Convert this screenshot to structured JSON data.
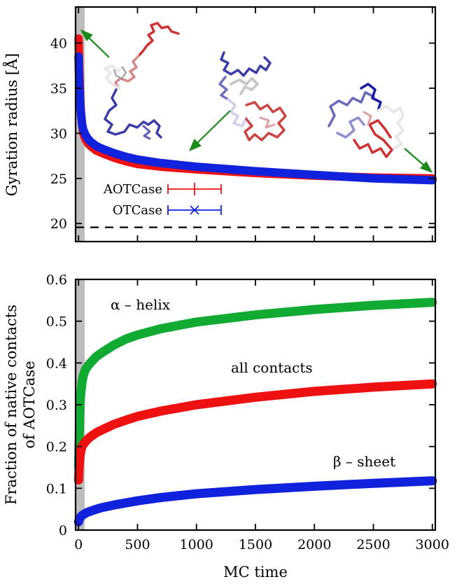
{
  "chart_data": [
    {
      "type": "line",
      "ylabel": "Gyration radius [Å]",
      "xlim": [
        -25,
        3025
      ],
      "ylim": [
        18,
        44
      ],
      "xticks": [
        0,
        500,
        1000,
        1500,
        2000,
        2500,
        3000
      ],
      "yticks": [
        20,
        25,
        30,
        35,
        40
      ],
      "shaded_region": [
        0,
        60
      ],
      "reference_line": {
        "y": 20,
        "style": "dashed"
      },
      "legend": [
        "AOTCase",
        "OTCase"
      ],
      "series": [
        {
          "name": "AOTCase",
          "color": "#ee1111",
          "marker": "|",
          "x": [
            0,
            5,
            10,
            15,
            20,
            30,
            40,
            60,
            80,
            100,
            150,
            200,
            300,
            400,
            500,
            700,
            1000,
            1500,
            2000,
            2500,
            3000
          ],
          "y": [
            40.5,
            37.5,
            35.5,
            33.8,
            32.5,
            31.0,
            30.0,
            29.3,
            28.9,
            28.6,
            28.1,
            27.8,
            27.3,
            26.9,
            26.6,
            26.3,
            26.0,
            25.6,
            25.3,
            25.1,
            25.0
          ]
        },
        {
          "name": "OTCase",
          "color": "#1122dd",
          "marker": "x",
          "x": [
            0,
            5,
            10,
            15,
            20,
            30,
            40,
            60,
            80,
            100,
            150,
            200,
            300,
            400,
            500,
            700,
            1000,
            1500,
            2000,
            2500,
            3000
          ],
          "y": [
            38.5,
            36.0,
            34.5,
            33.2,
            32.2,
            31.0,
            30.4,
            29.8,
            29.4,
            29.1,
            28.6,
            28.3,
            27.8,
            27.4,
            27.1,
            26.7,
            26.3,
            25.8,
            25.4,
            25.0,
            24.8
          ]
        }
      ]
    },
    {
      "type": "line",
      "xlabel": "MC time",
      "ylabel_line1": "Fraction of native contacts",
      "ylabel_line2": "of AOTCase",
      "xlim": [
        -25,
        3025
      ],
      "ylim": [
        0,
        0.6
      ],
      "xticks": [
        0,
        500,
        1000,
        1500,
        2000,
        2500,
        3000
      ],
      "yticks": [
        0,
        0.1,
        0.2,
        0.3,
        0.4,
        0.5,
        0.6
      ],
      "shaded_region": [
        0,
        60
      ],
      "annotations": [
        "α – helix",
        "all contacts",
        "β – sheet"
      ],
      "series": [
        {
          "name": "α – helix",
          "color": "#11aa33",
          "x": [
            0,
            5,
            10,
            15,
            20,
            30,
            40,
            60,
            80,
            100,
            150,
            200,
            300,
            400,
            500,
            700,
            1000,
            1500,
            2000,
            2500,
            3000
          ],
          "y": [
            0.15,
            0.22,
            0.27,
            0.31,
            0.33,
            0.355,
            0.37,
            0.385,
            0.393,
            0.4,
            0.415,
            0.425,
            0.443,
            0.457,
            0.467,
            0.482,
            0.498,
            0.515,
            0.528,
            0.538,
            0.545
          ]
        },
        {
          "name": "all contacts",
          "color": "#ee1111",
          "x": [
            0,
            5,
            10,
            15,
            20,
            30,
            40,
            60,
            80,
            100,
            150,
            200,
            300,
            400,
            500,
            700,
            1000,
            1500,
            2000,
            2500,
            3000
          ],
          "y": [
            0.12,
            0.15,
            0.17,
            0.18,
            0.19,
            0.2,
            0.205,
            0.212,
            0.218,
            0.223,
            0.233,
            0.24,
            0.253,
            0.263,
            0.272,
            0.285,
            0.3,
            0.318,
            0.332,
            0.342,
            0.35
          ]
        },
        {
          "name": "β – sheet",
          "color": "#1122dd",
          "x": [
            0,
            5,
            10,
            15,
            20,
            30,
            40,
            60,
            80,
            100,
            150,
            200,
            300,
            400,
            500,
            700,
            1000,
            1500,
            2000,
            2500,
            3000
          ],
          "y": [
            0.02,
            0.025,
            0.028,
            0.03,
            0.032,
            0.035,
            0.037,
            0.04,
            0.043,
            0.045,
            0.05,
            0.054,
            0.06,
            0.065,
            0.07,
            0.078,
            0.087,
            0.097,
            0.105,
            0.112,
            0.118
          ]
        }
      ]
    }
  ]
}
